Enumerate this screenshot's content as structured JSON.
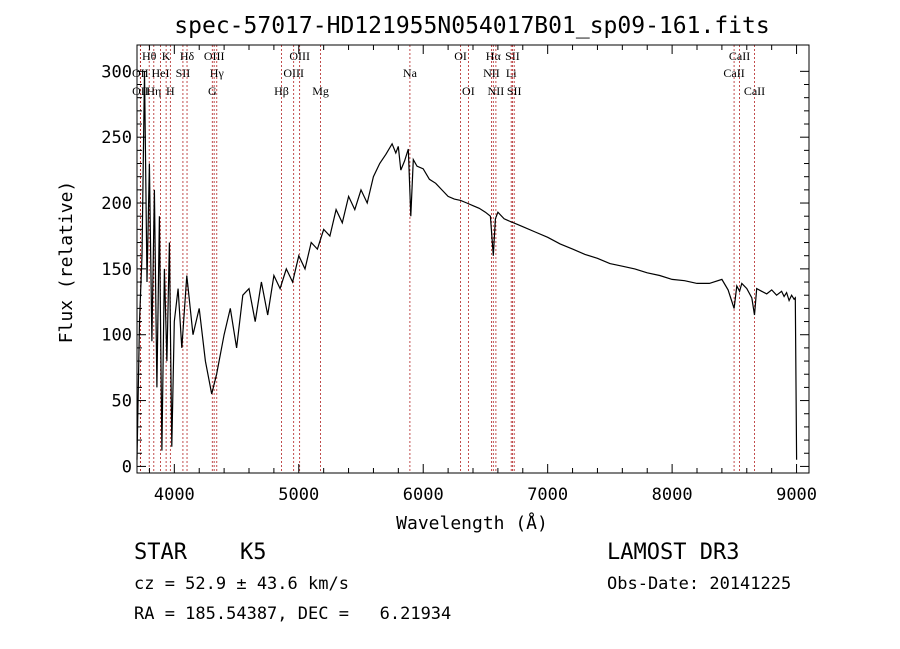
{
  "chart_data": {
    "type": "line",
    "title": "spec-57017-HD121955N054017B01_sp09-161.fits",
    "xlabel": "Wavelength (Å)",
    "ylabel": "Flux (relative)",
    "xlim": [
      3700,
      9100
    ],
    "ylim": [
      -5,
      320
    ],
    "xticks": [
      4000,
      5000,
      6000,
      7000,
      8000,
      9000
    ],
    "yticks": [
      0,
      50,
      100,
      150,
      200,
      250,
      300
    ],
    "grid": false,
    "series": [
      {
        "name": "flux",
        "x": [
          3700,
          3720,
          3740,
          3760,
          3780,
          3800,
          3820,
          3840,
          3860,
          3880,
          3900,
          3920,
          3940,
          3960,
          3980,
          4000,
          4030,
          4060,
          4100,
          4150,
          4200,
          4250,
          4300,
          4340,
          4400,
          4450,
          4500,
          4550,
          4600,
          4650,
          4700,
          4750,
          4800,
          4850,
          4900,
          4950,
          5000,
          5050,
          5100,
          5150,
          5200,
          5250,
          5300,
          5350,
          5400,
          5450,
          5500,
          5550,
          5600,
          5650,
          5700,
          5750,
          5780,
          5800,
          5820,
          5850,
          5880,
          5900,
          5920,
          5950,
          6000,
          6050,
          6100,
          6150,
          6200,
          6250,
          6300,
          6350,
          6400,
          6450,
          6500,
          6540,
          6563,
          6580,
          6600,
          6650,
          6700,
          6750,
          6800,
          6900,
          7000,
          7100,
          7200,
          7300,
          7400,
          7500,
          7600,
          7700,
          7800,
          7900,
          8000,
          8100,
          8200,
          8300,
          8400,
          8450,
          8498,
          8520,
          8542,
          8560,
          8600,
          8640,
          8662,
          8680,
          8720,
          8760,
          8800,
          8840,
          8880,
          8900,
          8920,
          8940,
          8960,
          8980,
          8990,
          9000
        ],
        "y": [
          5,
          110,
          160,
          300,
          140,
          230,
          95,
          210,
          60,
          190,
          12,
          150,
          80,
          170,
          15,
          110,
          135,
          90,
          145,
          100,
          120,
          80,
          55,
          70,
          100,
          120,
          90,
          130,
          135,
          110,
          140,
          115,
          145,
          135,
          150,
          140,
          160,
          150,
          170,
          165,
          180,
          175,
          195,
          185,
          205,
          195,
          210,
          200,
          220,
          230,
          237,
          245,
          238,
          243,
          225,
          232,
          241,
          190,
          233,
          228,
          226,
          218,
          215,
          210,
          205,
          203,
          202,
          200,
          198,
          196,
          193,
          190,
          160,
          188,
          193,
          188,
          186,
          184,
          182,
          178,
          174,
          169,
          165,
          161,
          158,
          154,
          152,
          150,
          147,
          145,
          142,
          141,
          139,
          139,
          142,
          134,
          120,
          137,
          133,
          139,
          135,
          128,
          115,
          135,
          133,
          131,
          134,
          130,
          133,
          129,
          132,
          126,
          130,
          127,
          128,
          5
        ]
      }
    ],
    "line_ids": [
      {
        "label": "Hθ",
        "wave": 3798,
        "row": 0
      },
      {
        "label": "OII",
        "wave": 3727,
        "row": 1
      },
      {
        "label": "OII",
        "wave": 3728,
        "row": 2
      },
      {
        "label": "Hη",
        "wave": 3835,
        "row": 2
      },
      {
        "label": "HeI",
        "wave": 3889,
        "row": 1
      },
      {
        "label": "K",
        "wave": 3934,
        "row": 0
      },
      {
        "label": "H",
        "wave": 3968,
        "row": 2
      },
      {
        "label": "SII",
        "wave": 4069,
        "row": 1
      },
      {
        "label": "Hδ",
        "wave": 4102,
        "row": 0
      },
      {
        "label": "OIII",
        "wave": 4320,
        "row": 0
      },
      {
        "label": "Hγ",
        "wave": 4341,
        "row": 1
      },
      {
        "label": "G",
        "wave": 4305,
        "row": 2
      },
      {
        "label": "Hβ",
        "wave": 4861,
        "row": 2
      },
      {
        "label": "OIII",
        "wave": 4959,
        "row": 1
      },
      {
        "label": "OIII",
        "wave": 5007,
        "row": 0
      },
      {
        "label": "Mg",
        "wave": 5175,
        "row": 2
      },
      {
        "label": "Na",
        "wave": 5893,
        "row": 1
      },
      {
        "label": "OI",
        "wave": 6300,
        "row": 0
      },
      {
        "label": "OI",
        "wave": 6363,
        "row": 2
      },
      {
        "label": "Hα",
        "wave": 6563,
        "row": 0
      },
      {
        "label": "NII",
        "wave": 6548,
        "row": 1
      },
      {
        "label": "NII",
        "wave": 6584,
        "row": 2
      },
      {
        "label": "SII",
        "wave": 6717,
        "row": 0
      },
      {
        "label": "Li",
        "wave": 6707,
        "row": 1
      },
      {
        "label": "SII",
        "wave": 6731,
        "row": 2
      },
      {
        "label": "CaII",
        "wave": 8542,
        "row": 0
      },
      {
        "label": "CaII",
        "wave": 8498,
        "row": 1
      },
      {
        "label": "CaII",
        "wave": 8662,
        "row": 2
      }
    ],
    "colors": {
      "line_ids": "#b22222",
      "spectrum": "#000000"
    }
  },
  "info": {
    "class_label": "STAR",
    "subclass": "K5",
    "survey": "LAMOST DR3",
    "cz": "cz = 52.9 ± 43.6 km/s",
    "obs_date": "Obs-Date: 20141225",
    "radec": "RA = 185.54387, DEC =   6.21934"
  }
}
